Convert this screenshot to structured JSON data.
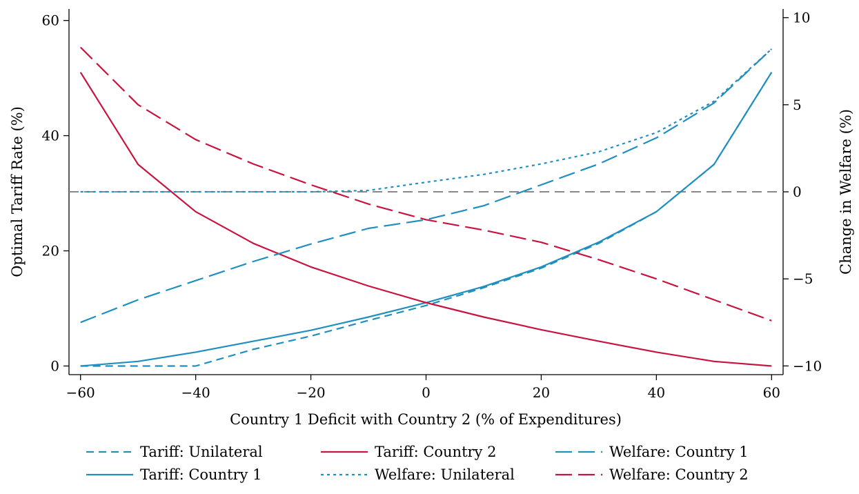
{
  "chart_data": {
    "type": "line",
    "xlabel": "Country 1 Deficit with Country 2 (% of Expenditures)",
    "ylabel": "Optimal Tariff Rate (%)",
    "y2label": "Change in Welfare (%)",
    "xlim": [
      -62,
      62
    ],
    "ylim": [
      -1.5,
      62
    ],
    "y2lim": [
      -10.5,
      10.5
    ],
    "x_ticks": [
      -60,
      -40,
      -20,
      0,
      20,
      40,
      60
    ],
    "x_tick_labels": [
      "−60",
      "−40",
      "−20",
      "0",
      "20",
      "40",
      "60"
    ],
    "y_ticks": [
      0,
      20,
      40,
      60
    ],
    "y_tick_labels": [
      "0",
      "20",
      "40",
      "60"
    ],
    "y2_ticks": [
      -10,
      -5,
      0,
      5,
      10
    ],
    "y2_tick_labels": [
      "−10",
      "−5",
      "0",
      "5",
      "10"
    ],
    "zero_reference_line": {
      "axis": "right",
      "value": 0,
      "color": "#888888",
      "style": "dashed"
    },
    "grid": false,
    "legend_position": "bottom",
    "x": [
      -60,
      -50,
      -40,
      -30,
      -20,
      -10,
      0,
      10,
      20,
      30,
      40,
      50,
      60
    ],
    "series": [
      {
        "name": "Tariff: Unilateral",
        "axis": "left",
        "color": "#1f8fbf",
        "style": "dashed",
        "values": [
          0,
          0,
          0,
          2.9,
          5.2,
          7.9,
          10.5,
          13.6,
          17.0,
          21.3,
          26.8,
          35.0,
          51.0
        ]
      },
      {
        "name": "Tariff: Country 1",
        "axis": "left",
        "color": "#1f8fbf",
        "style": "solid",
        "values": [
          0,
          0.8,
          2.4,
          4.3,
          6.2,
          8.5,
          11.0,
          13.8,
          17.2,
          21.5,
          26.8,
          35.0,
          51.0
        ]
      },
      {
        "name": "Tariff: Country 2",
        "axis": "left",
        "color": "#c8133f",
        "style": "solid",
        "values": [
          51.0,
          35.0,
          26.8,
          21.3,
          17.2,
          13.9,
          11.0,
          8.5,
          6.3,
          4.3,
          2.4,
          0.8,
          0
        ]
      },
      {
        "name": "Welfare: Unilateral",
        "axis": "right",
        "color": "#1f8fbf",
        "style": "dotted",
        "values": [
          0,
          0,
          0,
          0,
          0,
          0.08,
          0.55,
          1.0,
          1.6,
          2.3,
          3.4,
          5.2,
          8.2
        ]
      },
      {
        "name": "Welfare: Country 1",
        "axis": "right",
        "color": "#1f8fbf",
        "style": "long-dash",
        "values": [
          -7.5,
          -6.2,
          -5.1,
          -4.0,
          -3.0,
          -2.1,
          -1.6,
          -0.8,
          0.4,
          1.6,
          3.1,
          5.1,
          8.2
        ]
      },
      {
        "name": "Welfare: Country 2",
        "axis": "right",
        "color": "#c8133f",
        "style": "long-dash",
        "values": [
          8.3,
          5.0,
          3.0,
          1.6,
          0.4,
          -0.7,
          -1.6,
          -2.2,
          -2.9,
          -3.9,
          -5.0,
          -6.2,
          -7.4
        ]
      }
    ]
  }
}
